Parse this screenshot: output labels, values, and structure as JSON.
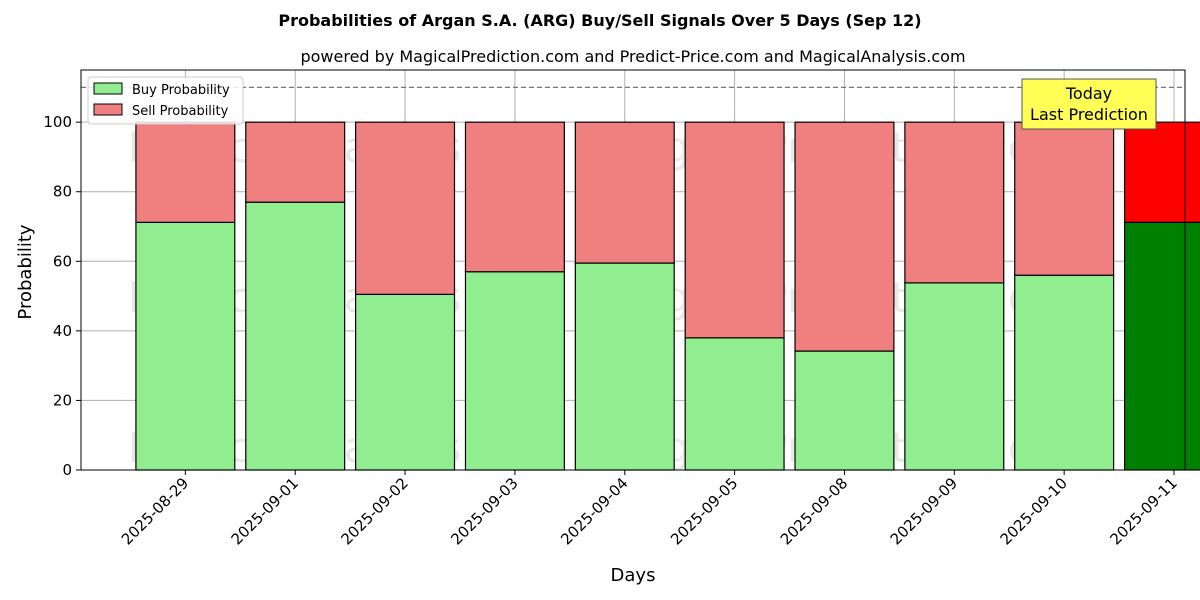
{
  "chart_data": {
    "type": "bar",
    "stacked": true,
    "title": "Probabilities of Argan S.A. (ARG) Buy/Sell Signals Over 5 Days (Sep 12)",
    "subtitle": "powered by MagicalPrediction.com and Predict-Price.com and MagicalAnalysis.com",
    "xlabel": "Days",
    "ylabel": "Probability",
    "ylim": [
      0,
      115
    ],
    "yticks": [
      0,
      20,
      40,
      60,
      80,
      100
    ],
    "grid": true,
    "reference_line": 110,
    "categories": [
      "2025-08-29",
      "2025-09-01",
      "2025-09-02",
      "2025-09-03",
      "2025-09-04",
      "2025-09-05",
      "2025-09-08",
      "2025-09-09",
      "2025-09-10",
      "2025-09-11"
    ],
    "series": [
      {
        "name": "Buy Probability",
        "values": [
          71.2,
          77.0,
          50.5,
          57.0,
          59.5,
          38.0,
          34.2,
          53.8,
          56.0,
          71.2
        ]
      },
      {
        "name": "Sell Probability",
        "values": [
          28.8,
          23.0,
          49.5,
          43.0,
          40.5,
          62.0,
          65.8,
          46.2,
          44.0,
          28.8
        ]
      }
    ],
    "colors": {
      "buy": "#90ee90",
      "sell": "#f08080",
      "buy_highlight": "#008000",
      "sell_highlight": "#ff0000",
      "annotation_bg": "#ffff55"
    },
    "highlight_index": 9,
    "legend": {
      "position": "top-left",
      "entries": [
        "Buy Probability",
        "Sell Probability"
      ]
    },
    "annotation": {
      "line1": "Today",
      "line2": "Last Prediction"
    },
    "watermarks": [
      "MagicalAnalysis.com",
      "MagicalPrediction.com"
    ]
  }
}
